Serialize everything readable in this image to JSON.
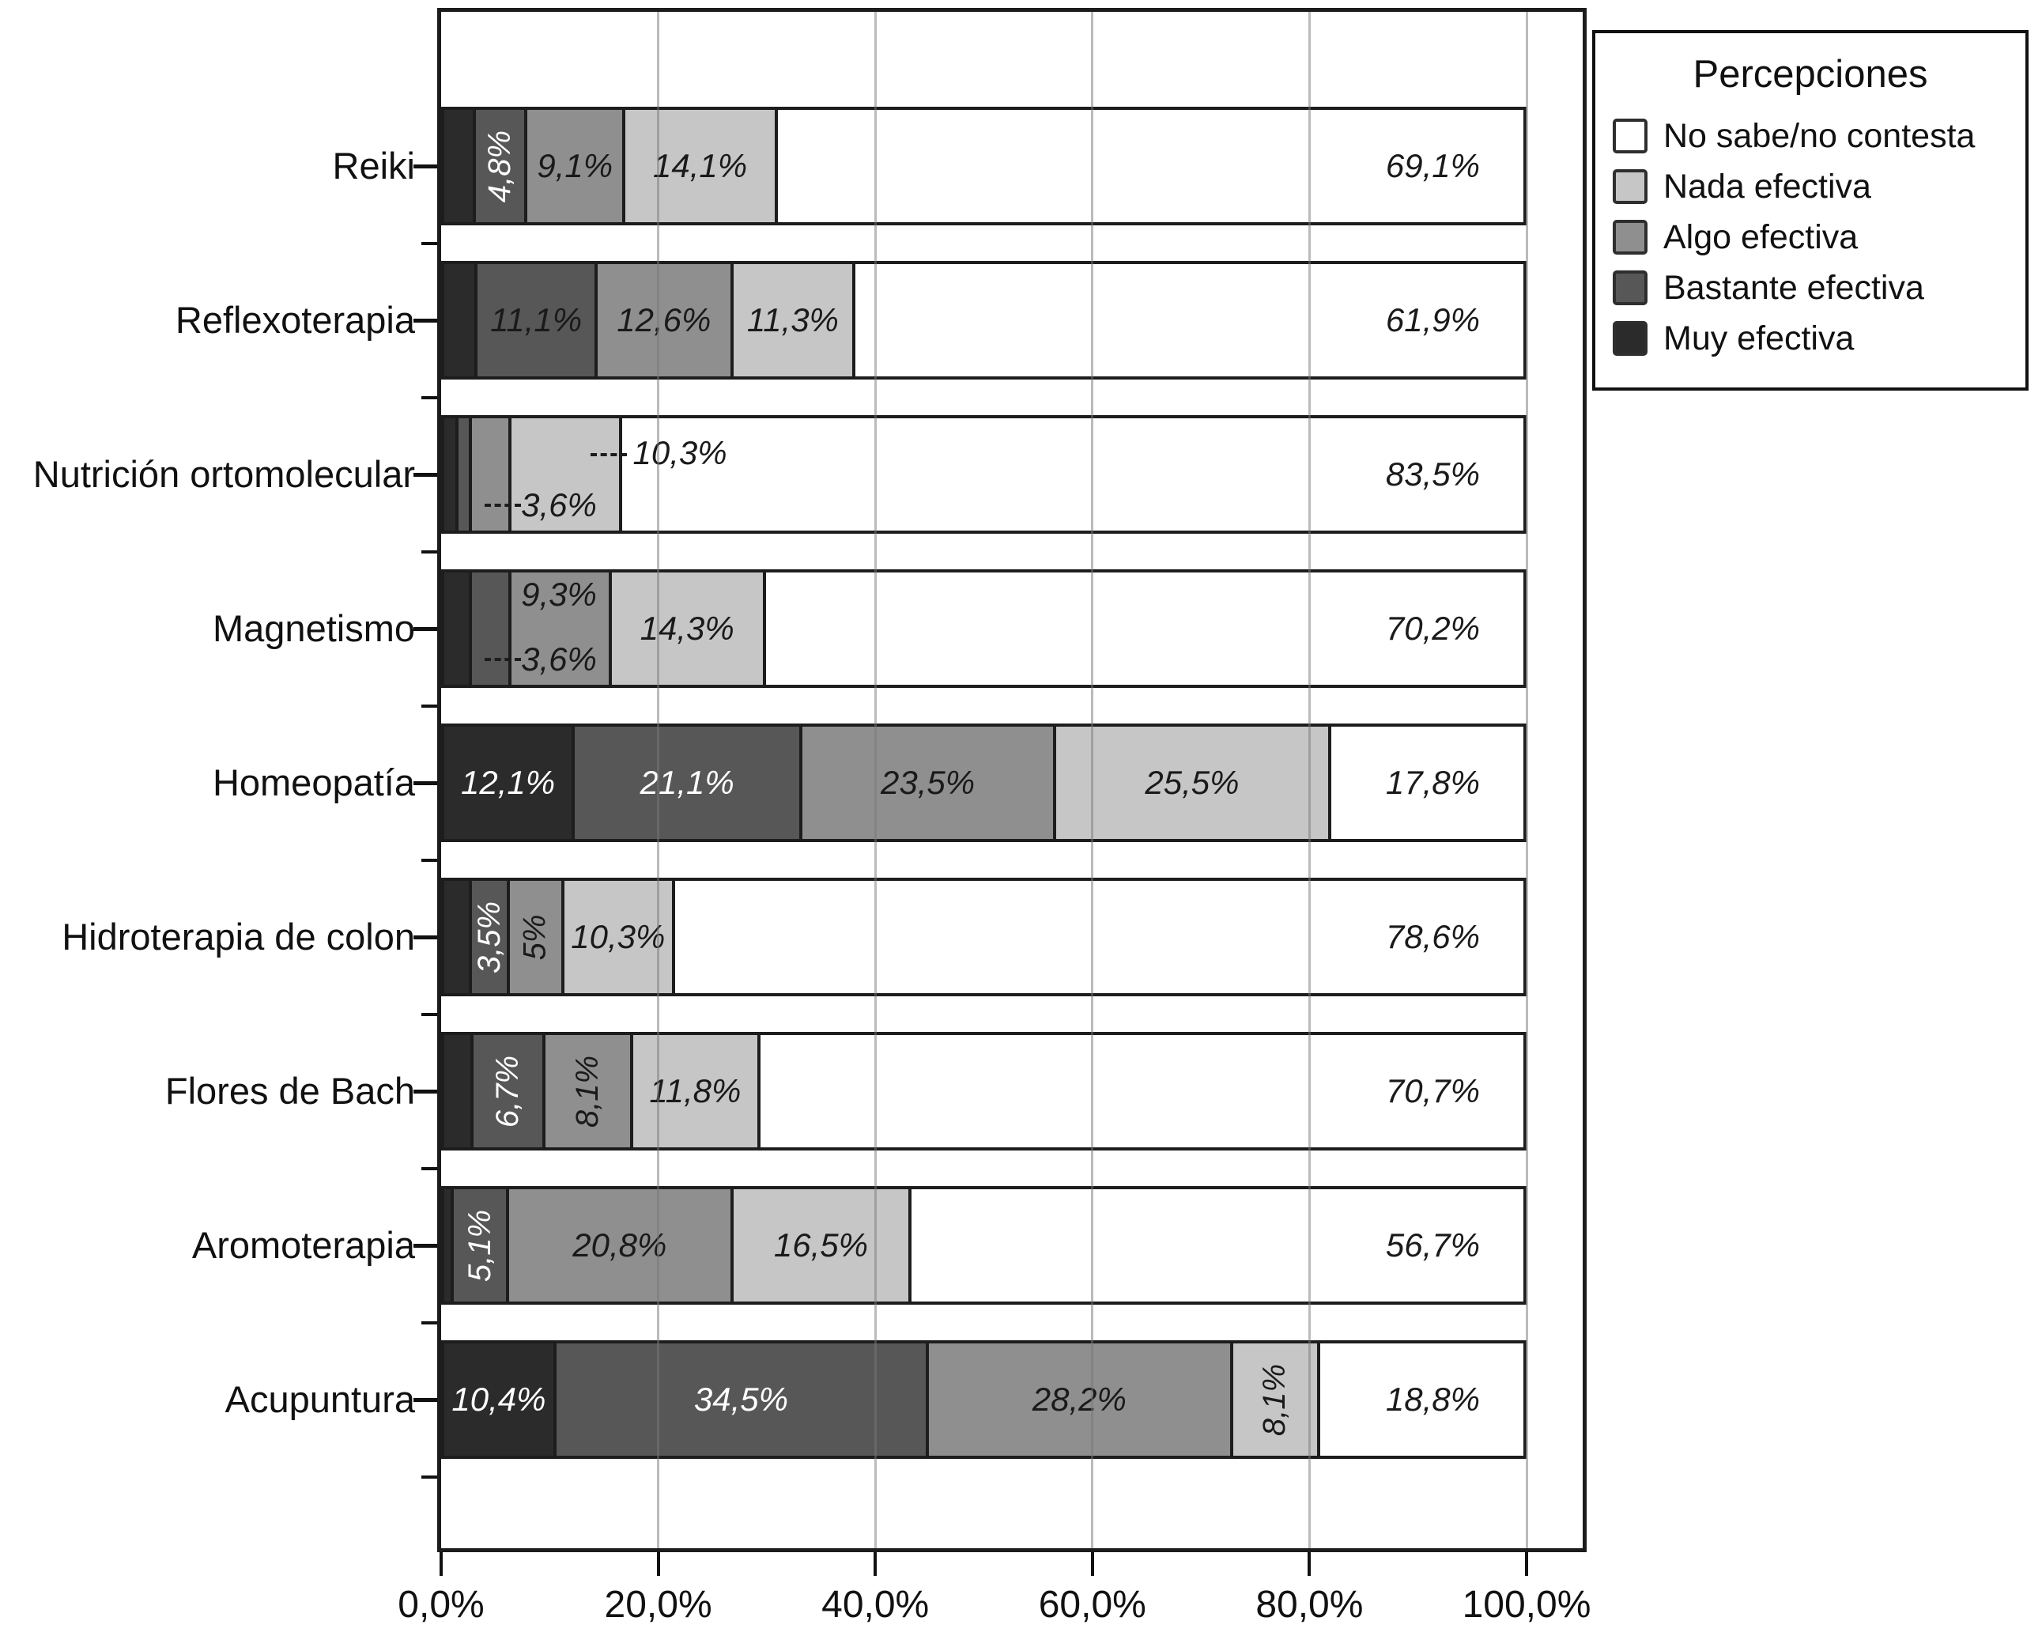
{
  "chart_data": {
    "type": "bar",
    "orientation": "horizontal-stacked",
    "unit": "%",
    "title": "",
    "xlabel": "",
    "ylabel": "",
    "xlim": [
      0,
      100
    ],
    "grid": "vertical",
    "x_ticks": [
      "0,0%",
      "20,0%",
      "40,0%",
      "60,0%",
      "80,0%",
      "100,0%"
    ],
    "x_tick_values": [
      0,
      20,
      40,
      60,
      80,
      100
    ],
    "legend": {
      "title": "Percepciones",
      "position": "top-right-outside",
      "entries": [
        {
          "key": "no_sabe",
          "label": "No sabe/no contesta",
          "color": "#ffffff"
        },
        {
          "key": "nada",
          "label": "Nada efectiva",
          "color": "#c6c6c6"
        },
        {
          "key": "algo",
          "label": "Algo efectiva",
          "color": "#8f8f8f"
        },
        {
          "key": "bastante",
          "label": "Bastante efectiva",
          "color": "#575757"
        },
        {
          "key": "muy",
          "label": "Muy efectiva",
          "color": "#2b2b2b"
        }
      ]
    },
    "series_order": [
      "muy",
      "bastante",
      "algo",
      "nada",
      "no_sabe"
    ],
    "categories": [
      {
        "name": "Reiki",
        "segments": [
          {
            "key": "muy",
            "value": 2.9,
            "label": null
          },
          {
            "key": "bastante",
            "value": 4.8,
            "label": "4,8%",
            "label_mode": "v",
            "label_color": "#ffffff"
          },
          {
            "key": "algo",
            "value": 9.1,
            "label": "9,1%",
            "label_mode": "h",
            "label_color": "#1a1a1a"
          },
          {
            "key": "nada",
            "value": 14.1,
            "label": "14,1%",
            "label_mode": "h",
            "label_color": "#1a1a1a"
          },
          {
            "key": "no_sabe",
            "value": 69.1,
            "label": "69,1%",
            "label_mode": "end",
            "label_color": "#1a1a1a"
          }
        ]
      },
      {
        "name": "Reflexoterapia",
        "segments": [
          {
            "key": "muy",
            "value": 3.1,
            "label": null
          },
          {
            "key": "bastante",
            "value": 11.1,
            "label": "11,1%",
            "label_mode": "h",
            "label_color": "#1a1a1a"
          },
          {
            "key": "algo",
            "value": 12.6,
            "label": "12,6%",
            "label_mode": "h",
            "label_color": "#1a1a1a"
          },
          {
            "key": "nada",
            "value": 11.3,
            "label": "11,3%",
            "label_mode": "h",
            "label_color": "#1a1a1a"
          },
          {
            "key": "no_sabe",
            "value": 61.9,
            "label": "61,9%",
            "label_mode": "end",
            "label_color": "#1a1a1a"
          }
        ]
      },
      {
        "name": "Nutrición ortomolecular",
        "segments": [
          {
            "key": "muy",
            "value": 1.3,
            "label": null
          },
          {
            "key": "bastante",
            "value": 1.3,
            "label": null
          },
          {
            "key": "algo",
            "value": 3.6,
            "label": "3,6%",
            "label_mode": "leader-bottom",
            "label_color": "#1a1a1a"
          },
          {
            "key": "nada",
            "value": 10.3,
            "label": "10,3%",
            "label_mode": "leader-top",
            "label_color": "#1a1a1a"
          },
          {
            "key": "no_sabe",
            "value": 83.5,
            "label": "83,5%",
            "label_mode": "end",
            "label_color": "#1a1a1a"
          }
        ]
      },
      {
        "name": "Magnetismo",
        "segments": [
          {
            "key": "muy",
            "value": 2.6,
            "label": null
          },
          {
            "key": "bastante",
            "value": 3.6,
            "label": "3,6%",
            "label_mode": "leader-bottom",
            "label_color": "#1a1a1a"
          },
          {
            "key": "algo",
            "value": 9.3,
            "label": "9,3%",
            "label_mode": "float-top",
            "label_color": "#1a1a1a"
          },
          {
            "key": "nada",
            "value": 14.3,
            "label": "14,3%",
            "label_mode": "h",
            "label_color": "#1a1a1a"
          },
          {
            "key": "no_sabe",
            "value": 70.2,
            "label": "70,2%",
            "label_mode": "end",
            "label_color": "#1a1a1a"
          }
        ]
      },
      {
        "name": "Homeopatía",
        "segments": [
          {
            "key": "muy",
            "value": 12.1,
            "label": "12,1%",
            "label_mode": "h",
            "label_color": "#ffffff"
          },
          {
            "key": "bastante",
            "value": 21.1,
            "label": "21,1%",
            "label_mode": "h",
            "label_color": "#ffffff"
          },
          {
            "key": "algo",
            "value": 23.5,
            "label": "23,5%",
            "label_mode": "h",
            "label_color": "#1a1a1a"
          },
          {
            "key": "nada",
            "value": 25.5,
            "label": "25,5%",
            "label_mode": "h",
            "label_color": "#1a1a1a"
          },
          {
            "key": "no_sabe",
            "value": 17.8,
            "label": "17,8%",
            "label_mode": "end",
            "label_color": "#1a1a1a"
          }
        ]
      },
      {
        "name": "Hidroterapia de colon",
        "segments": [
          {
            "key": "muy",
            "value": 2.6,
            "label": null
          },
          {
            "key": "bastante",
            "value": 3.5,
            "label": "3,5%",
            "label_mode": "v",
            "label_color": "#ffffff"
          },
          {
            "key": "algo",
            "value": 5.0,
            "label": "5%",
            "label_mode": "v",
            "label_color": "#1a1a1a"
          },
          {
            "key": "nada",
            "value": 10.3,
            "label": "10,3%",
            "label_mode": "h",
            "label_color": "#1a1a1a"
          },
          {
            "key": "no_sabe",
            "value": 78.6,
            "label": "78,6%",
            "label_mode": "end",
            "label_color": "#1a1a1a"
          }
        ]
      },
      {
        "name": "Flores de Bach",
        "segments": [
          {
            "key": "muy",
            "value": 2.7,
            "label": null
          },
          {
            "key": "bastante",
            "value": 6.7,
            "label": "6,7%",
            "label_mode": "v",
            "label_color": "#ffffff"
          },
          {
            "key": "algo",
            "value": 8.1,
            "label": "8,1%",
            "label_mode": "v",
            "label_color": "#1a1a1a"
          },
          {
            "key": "nada",
            "value": 11.8,
            "label": "11,8%",
            "label_mode": "h",
            "label_color": "#1a1a1a"
          },
          {
            "key": "no_sabe",
            "value": 70.7,
            "label": "70,7%",
            "label_mode": "end",
            "label_color": "#1a1a1a"
          }
        ]
      },
      {
        "name": "Aromoterapia",
        "segments": [
          {
            "key": "muy",
            "value": 0.9,
            "label": null
          },
          {
            "key": "bastante",
            "value": 5.1,
            "label": "5,1%",
            "label_mode": "v",
            "label_color": "#ffffff"
          },
          {
            "key": "algo",
            "value": 20.8,
            "label": "20,8%",
            "label_mode": "h",
            "label_color": "#1a1a1a"
          },
          {
            "key": "nada",
            "value": 16.5,
            "label": "16,5%",
            "label_mode": "h",
            "label_color": "#1a1a1a"
          },
          {
            "key": "no_sabe",
            "value": 56.7,
            "label": "56,7%",
            "label_mode": "end",
            "label_color": "#1a1a1a"
          }
        ]
      },
      {
        "name": "Acupuntura",
        "segments": [
          {
            "key": "muy",
            "value": 10.4,
            "label": "10,4%",
            "label_mode": "h",
            "label_color": "#ffffff"
          },
          {
            "key": "bastante",
            "value": 34.5,
            "label": "34,5%",
            "label_mode": "h",
            "label_color": "#ffffff"
          },
          {
            "key": "algo",
            "value": 28.2,
            "label": "28,2%",
            "label_mode": "h",
            "label_color": "#1a1a1a"
          },
          {
            "key": "nada",
            "value": 8.1,
            "label": "8,1%",
            "label_mode": "v",
            "label_color": "#1a1a1a"
          },
          {
            "key": "no_sabe",
            "value": 18.8,
            "label": "18,8%",
            "label_mode": "end",
            "label_color": "#1a1a1a"
          }
        ]
      }
    ]
  }
}
